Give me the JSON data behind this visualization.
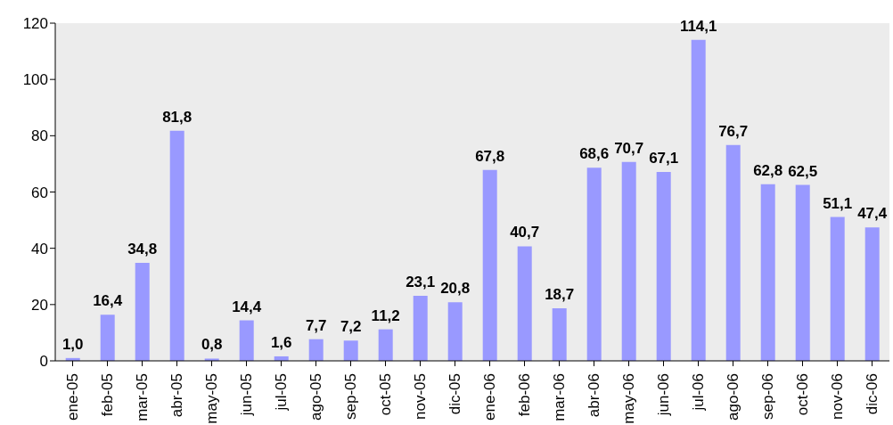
{
  "chart_data": {
    "type": "bar",
    "categories": [
      "ene-05",
      "feb-05",
      "mar-05",
      "abr-05",
      "may-05",
      "jun-05",
      "jul-05",
      "ago-05",
      "sep-05",
      "oct-05",
      "nov-05",
      "dic-05",
      "ene-06",
      "feb-06",
      "mar-06",
      "abr-06",
      "may-06",
      "jun-06",
      "jul-06",
      "ago-06",
      "sep-06",
      "oct-06",
      "nov-06",
      "dic-06"
    ],
    "values": [
      1.0,
      16.4,
      34.8,
      81.8,
      0.8,
      14.4,
      1.6,
      7.7,
      7.2,
      11.2,
      23.1,
      20.8,
      67.8,
      40.7,
      18.7,
      68.6,
      70.7,
      67.1,
      114.1,
      76.7,
      62.8,
      62.5,
      51.1,
      47.4
    ],
    "value_labels": [
      "1,0",
      "16,4",
      "34,8",
      "81,8",
      "0,8",
      "14,4",
      "1,6",
      "7,7",
      "7,2",
      "11,2",
      "23,1",
      "20,8",
      "67,8",
      "40,7",
      "18,7",
      "68,6",
      "70,7",
      "67,1",
      "114,1",
      "76,7",
      "62,8",
      "62,5",
      "51,1",
      "47,4"
    ],
    "color": "#9999ff",
    "ylim": [
      0,
      120
    ],
    "yticks": [
      0,
      20,
      40,
      60,
      80,
      100,
      120
    ],
    "grid": false,
    "legend": false
  }
}
